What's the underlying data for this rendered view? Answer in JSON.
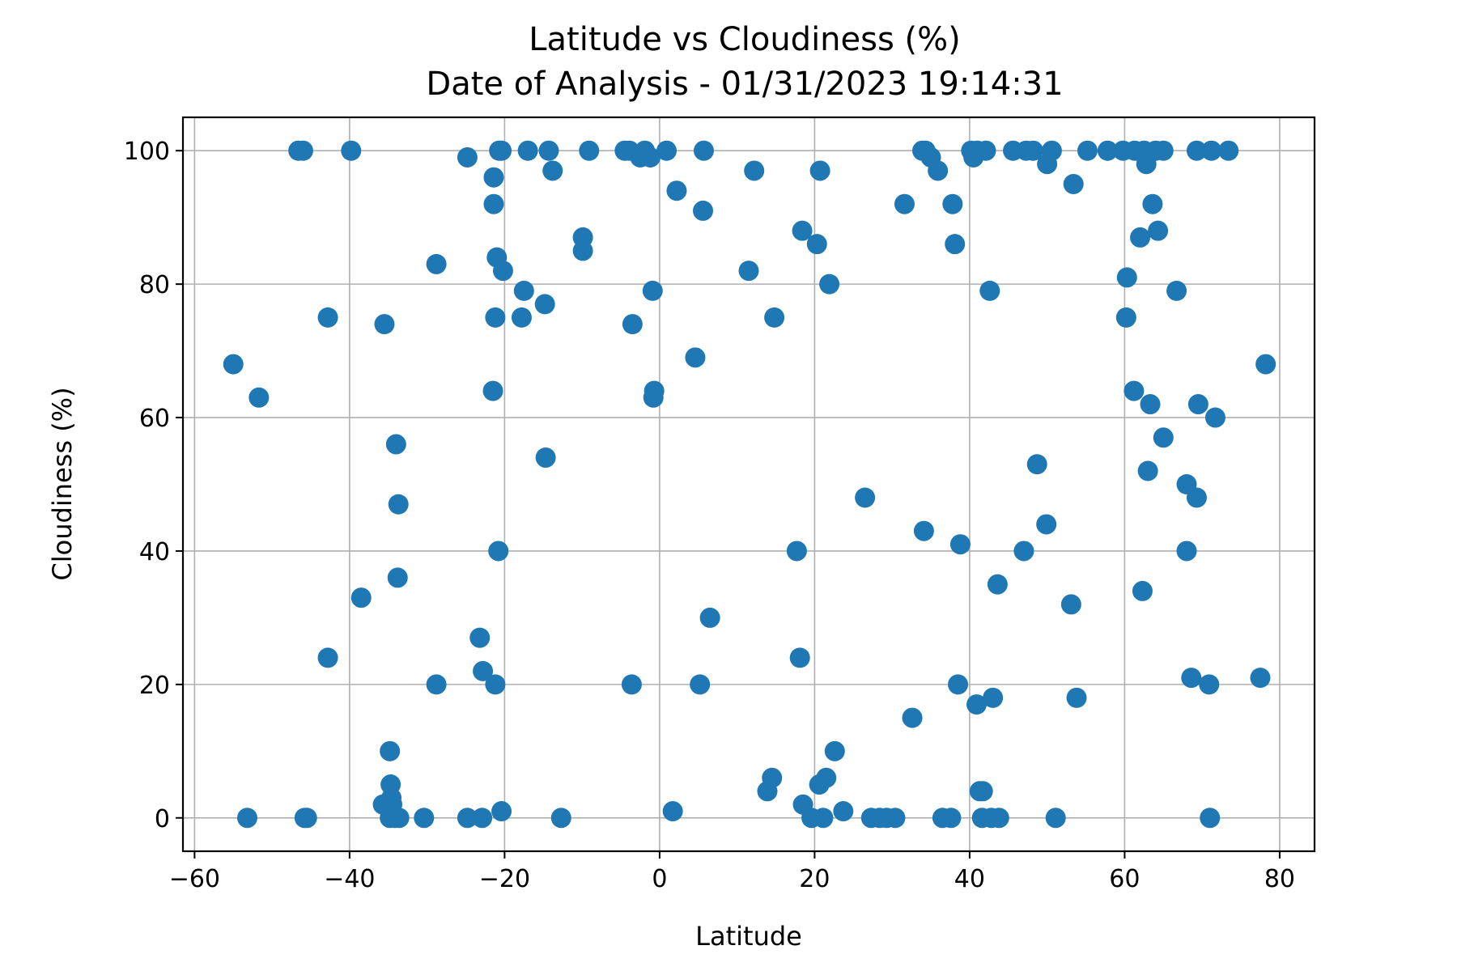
{
  "chart_data": {
    "type": "scatter",
    "title": [
      "Latitude vs Cloudiness (%)",
      "Date of Analysis - 01/31/2023 19:14:31"
    ],
    "xlabel": "Latitude",
    "ylabel": "Cloudiness (%)",
    "xlim": [
      -61.5,
      84.5
    ],
    "ylim": [
      -5,
      105
    ],
    "xticks": [
      -60,
      -40,
      -20,
      0,
      20,
      40,
      60,
      80
    ],
    "yticks": [
      0,
      20,
      40,
      60,
      80,
      100
    ],
    "xtick_labels": [
      "−60",
      "−40",
      "−20",
      "0",
      "20",
      "40",
      "60",
      "80"
    ],
    "ytick_labels": [
      "0",
      "20",
      "40",
      "60",
      "80",
      "100"
    ],
    "grid": true,
    "marker_color": "#1f77b4",
    "points": [
      [
        -55,
        68
      ],
      [
        -51.7,
        63
      ],
      [
        -53.2,
        0
      ],
      [
        -46.6,
        100
      ],
      [
        -46,
        100
      ],
      [
        -45.8,
        0
      ],
      [
        -45.5,
        0
      ],
      [
        -42.8,
        75
      ],
      [
        -42.8,
        24
      ],
      [
        -39.8,
        100
      ],
      [
        -38.5,
        33
      ],
      [
        -35.5,
        74
      ],
      [
        -35.7,
        2
      ],
      [
        -34.8,
        10
      ],
      [
        -34.7,
        5
      ],
      [
        -34.6,
        3
      ],
      [
        -34.5,
        2
      ],
      [
        -34.8,
        0
      ],
      [
        -34.2,
        0
      ],
      [
        -33.6,
        0
      ],
      [
        -34,
        56
      ],
      [
        -33.7,
        47
      ],
      [
        -33.8,
        36
      ],
      [
        -30.4,
        0
      ],
      [
        -28.8,
        83
      ],
      [
        -28.8,
        20
      ],
      [
        -24.8,
        99
      ],
      [
        -24.8,
        0
      ],
      [
        -23.2,
        27
      ],
      [
        -22.8,
        22
      ],
      [
        -22.9,
        0
      ],
      [
        -21.4,
        96
      ],
      [
        -21.4,
        92
      ],
      [
        -21.5,
        64
      ],
      [
        -21.2,
        75
      ],
      [
        -21.2,
        20
      ],
      [
        -21,
        84
      ],
      [
        -20.8,
        40
      ],
      [
        -20.7,
        100
      ],
      [
        -20.4,
        100
      ],
      [
        -20.2,
        82
      ],
      [
        -20.4,
        1
      ],
      [
        -17.5,
        79
      ],
      [
        -17.8,
        75
      ],
      [
        -17,
        100
      ],
      [
        -14.8,
        77
      ],
      [
        -14.7,
        54
      ],
      [
        -14.3,
        100
      ],
      [
        -13.8,
        97
      ],
      [
        -12.7,
        0
      ],
      [
        -9.9,
        87
      ],
      [
        -9.9,
        85
      ],
      [
        -9.1,
        100
      ],
      [
        -4.5,
        100
      ],
      [
        -3.9,
        100
      ],
      [
        -3.5,
        74
      ],
      [
        -3.6,
        20
      ],
      [
        -2.5,
        99
      ],
      [
        -1.9,
        100
      ],
      [
        -1.2,
        99
      ],
      [
        -0.9,
        79
      ],
      [
        -0.7,
        64
      ],
      [
        -0.8,
        63
      ],
      [
        0.9,
        100
      ],
      [
        1.7,
        1
      ],
      [
        2.2,
        94
      ],
      [
        4.6,
        69
      ],
      [
        5.2,
        20
      ],
      [
        5.6,
        91
      ],
      [
        5.7,
        100
      ],
      [
        6.5,
        30
      ],
      [
        11.5,
        82
      ],
      [
        12.2,
        97
      ],
      [
        13.9,
        4
      ],
      [
        14.5,
        6
      ],
      [
        14.8,
        75
      ],
      [
        17.7,
        40
      ],
      [
        18.1,
        24
      ],
      [
        18.4,
        88
      ],
      [
        18.5,
        2
      ],
      [
        19.6,
        0
      ],
      [
        20.3,
        86
      ],
      [
        20.7,
        97
      ],
      [
        20.6,
        5
      ],
      [
        21.1,
        0
      ],
      [
        21.5,
        6
      ],
      [
        21.9,
        80
      ],
      [
        22.6,
        10
      ],
      [
        23.7,
        1
      ],
      [
        26.5,
        48
      ],
      [
        27.3,
        0
      ],
      [
        28.4,
        0
      ],
      [
        29.3,
        0
      ],
      [
        30.4,
        0
      ],
      [
        31.6,
        92
      ],
      [
        32.6,
        15
      ],
      [
        33.9,
        100
      ],
      [
        34.3,
        100
      ],
      [
        34.1,
        43
      ],
      [
        35,
        99
      ],
      [
        35.9,
        97
      ],
      [
        36.5,
        0
      ],
      [
        37.6,
        0
      ],
      [
        37.8,
        92
      ],
      [
        38.1,
        86
      ],
      [
        38.5,
        20
      ],
      [
        38.8,
        41
      ],
      [
        40.2,
        100
      ],
      [
        40.5,
        99
      ],
      [
        41,
        100
      ],
      [
        40.9,
        17
      ],
      [
        41.3,
        4
      ],
      [
        41.7,
        4
      ],
      [
        41.6,
        0
      ],
      [
        42.1,
        100
      ],
      [
        42.6,
        79
      ],
      [
        43,
        18
      ],
      [
        42.8,
        0
      ],
      [
        43.6,
        35
      ],
      [
        43.8,
        0
      ],
      [
        45.6,
        100
      ],
      [
        47,
        40
      ],
      [
        47.3,
        100
      ],
      [
        48.2,
        100
      ],
      [
        48.7,
        53
      ],
      [
        49.9,
        44
      ],
      [
        50,
        98
      ],
      [
        50.6,
        100
      ],
      [
        51.1,
        0
      ],
      [
        53.1,
        32
      ],
      [
        53.4,
        95
      ],
      [
        53.8,
        18
      ],
      [
        55.2,
        100
      ],
      [
        57.8,
        100
      ],
      [
        59.8,
        100
      ],
      [
        60.3,
        81
      ],
      [
        60.2,
        75
      ],
      [
        61.2,
        64
      ],
      [
        61.3,
        100
      ],
      [
        62,
        87
      ],
      [
        62.3,
        34
      ],
      [
        62.5,
        100
      ],
      [
        62.8,
        98
      ],
      [
        63,
        52
      ],
      [
        63.3,
        62
      ],
      [
        63.6,
        92
      ],
      [
        64,
        100
      ],
      [
        64.3,
        88
      ],
      [
        65,
        57
      ],
      [
        65,
        100
      ],
      [
        66.7,
        79
      ],
      [
        68,
        50
      ],
      [
        68,
        40
      ],
      [
        68.6,
        21
      ],
      [
        69.3,
        48
      ],
      [
        69.5,
        62
      ],
      [
        69.3,
        100
      ],
      [
        70.9,
        20
      ],
      [
        71.2,
        100
      ],
      [
        71,
        0
      ],
      [
        71.7,
        60
      ],
      [
        73.4,
        100
      ],
      [
        77.5,
        21
      ],
      [
        78.2,
        68
      ]
    ]
  }
}
